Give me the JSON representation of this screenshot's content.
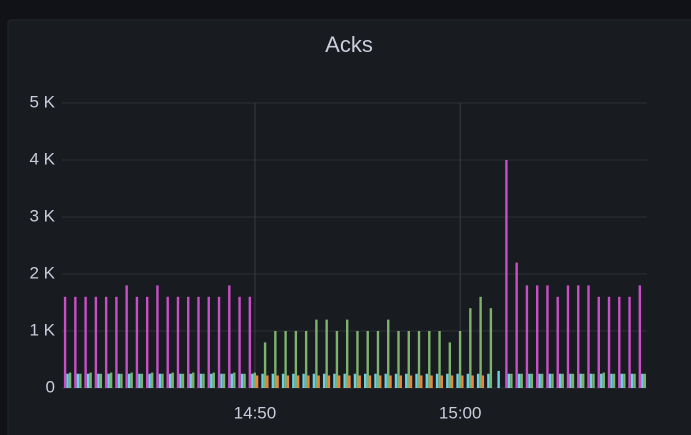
{
  "chart_data": {
    "type": "bar",
    "title": "Acks",
    "x": [
      880.75,
      881.25,
      881.75,
      882.25,
      882.75,
      883.25,
      883.75,
      884.25,
      884.75,
      885.25,
      885.75,
      886.25,
      886.75,
      887.25,
      887.75,
      888.25,
      888.75,
      889.25,
      889.75,
      890.25,
      890.75,
      891.25,
      891.75,
      892.25,
      892.75,
      893.25,
      893.75,
      894.25,
      894.75,
      895.25,
      895.75,
      896.25,
      896.75,
      897.25,
      897.75,
      898.25,
      898.75,
      899.25,
      899.75,
      900.25,
      900.75,
      901.25,
      901.75,
      902.25,
      902.75,
      903.25,
      903.75,
      904.25,
      904.75,
      905.25,
      905.75,
      906.25,
      906.75,
      907.25,
      907.75,
      908.25,
      908.75
    ],
    "series": [
      {
        "color": "#c94fc8",
        "values": [
          1600,
          1600,
          1600,
          1600,
          1600,
          1600,
          1800,
          1600,
          1600,
          1800,
          1600,
          1600,
          1600,
          1600,
          1600,
          1600,
          1800,
          1600,
          1600,
          null,
          null,
          null,
          null,
          null,
          null,
          null,
          null,
          null,
          null,
          null,
          null,
          null,
          null,
          null,
          null,
          null,
          null,
          null,
          null,
          null,
          null,
          null,
          null,
          4000,
          2200,
          1800,
          1800,
          1800,
          1600,
          1800,
          1800,
          1800,
          1600,
          1600,
          1600,
          1600,
          1800
        ]
      },
      {
        "color": "#7eb26d",
        "values": [
          270,
          250,
          270,
          250,
          270,
          250,
          270,
          250,
          270,
          250,
          270,
          250,
          270,
          250,
          270,
          250,
          270,
          250,
          270,
          800,
          1000,
          1000,
          1000,
          1000,
          1200,
          1200,
          1000,
          1200,
          1000,
          1000,
          1000,
          1200,
          1000,
          1000,
          1000,
          1000,
          1000,
          800,
          1000,
          1400,
          1600,
          1400,
          null,
          250,
          250,
          250,
          250,
          250,
          250,
          250,
          250,
          250,
          270,
          250,
          250,
          250,
          250
        ]
      },
      {
        "color": "#6ed0e0",
        "values": [
          250,
          250,
          250,
          250,
          250,
          250,
          250,
          250,
          250,
          250,
          250,
          250,
          250,
          250,
          250,
          250,
          250,
          250,
          250,
          250,
          250,
          250,
          250,
          250,
          250,
          250,
          250,
          250,
          250,
          250,
          250,
          250,
          250,
          250,
          250,
          250,
          250,
          250,
          250,
          250,
          250,
          250,
          300,
          250,
          250,
          250,
          250,
          250,
          250,
          250,
          250,
          250,
          250,
          250,
          250,
          250,
          250
        ]
      },
      {
        "color": "#ef843c",
        "values": [
          null,
          null,
          null,
          null,
          null,
          null,
          null,
          null,
          null,
          null,
          null,
          null,
          null,
          null,
          null,
          null,
          null,
          null,
          null,
          220,
          220,
          220,
          220,
          220,
          220,
          220,
          220,
          220,
          220,
          220,
          220,
          220,
          220,
          220,
          220,
          220,
          220,
          220,
          220,
          220,
          220,
          220,
          null,
          null,
          null,
          null,
          null,
          null,
          null,
          null,
          null,
          null,
          null,
          null,
          null,
          null,
          null
        ]
      }
    ],
    "xlim": [
      880.6,
      909.1
    ],
    "xticks": [
      {
        "value": 890,
        "label": "14:50"
      },
      {
        "value": 900,
        "label": "15:00"
      }
    ],
    "ylim": [
      0,
      5000
    ],
    "yticks": [
      0,
      {
        "value": 1000,
        "label": "1 K"
      },
      {
        "value": 2000,
        "label": "2 K"
      },
      {
        "value": 3000,
        "label": "3 K"
      },
      {
        "value": 4000,
        "label": "4 K"
      },
      {
        "value": 5000,
        "label": "5 K"
      }
    ],
    "grid": true
  }
}
